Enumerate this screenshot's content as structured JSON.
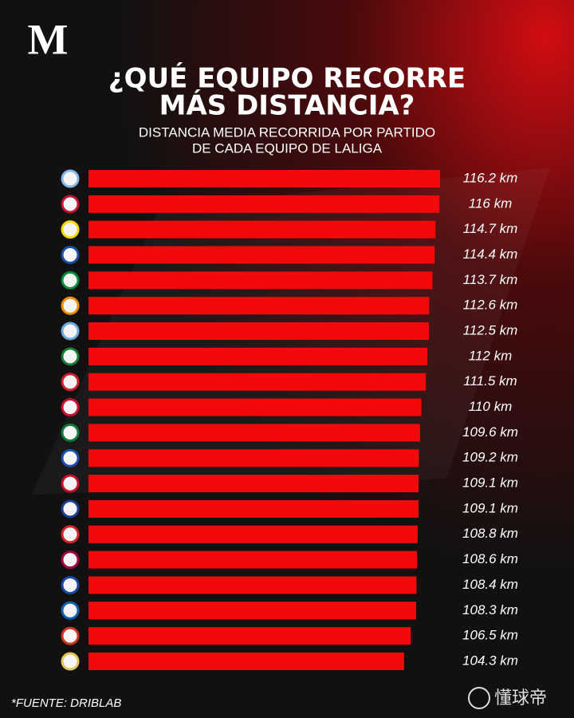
{
  "logo": "M",
  "chart_data": {
    "type": "bar",
    "orientation": "horizontal",
    "title": [
      "¿QUÉ EQUIPO RECORRE",
      "MÁS DISTANCIA?"
    ],
    "subtitle": [
      "DISTANCIA MEDIA RECORRIDA POR PARTIDO",
      "DE CADA EQUIPO DE LALIGA"
    ],
    "values": [
      116.2,
      116,
      114.7,
      114.4,
      113.7,
      112.6,
      112.5,
      112,
      111.5,
      110,
      109.6,
      109.2,
      109.1,
      109.1,
      108.8,
      108.6,
      108.4,
      108.3,
      106.5,
      104.3
    ],
    "value_labels": [
      "116.2 km",
      "116 km",
      "114.7 km",
      "114.4 km",
      "113.7 km",
      "112.6 km",
      "112.5 km",
      "112 km",
      "111.5 km",
      "110 km",
      "109.6 km",
      "109.2 km",
      "109.1 km",
      "109.1 km",
      "108.8 km",
      "108.6 km",
      "108.4 km",
      "108.3 km",
      "106.5 km",
      "104.3 km"
    ],
    "color": "#f20a0a",
    "source": "*FUENTE: DRIBLAB"
  },
  "watermark": "懂球帝"
}
